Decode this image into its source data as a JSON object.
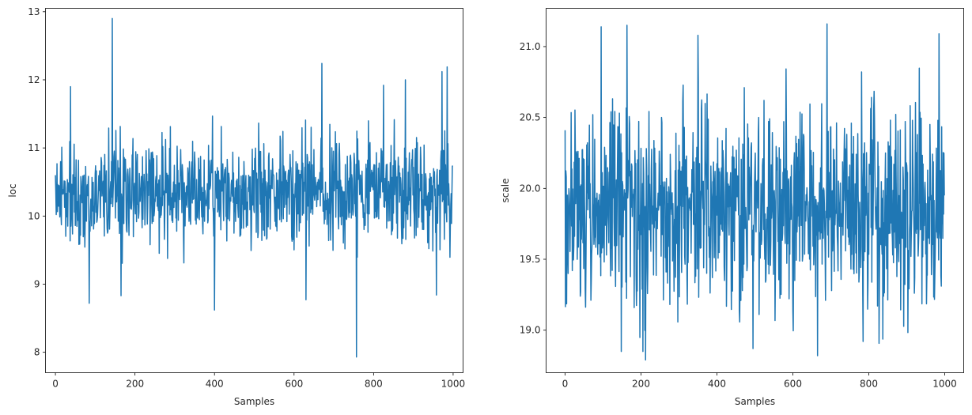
{
  "chart_data": [
    {
      "type": "line",
      "xlabel": "Samples",
      "ylabel": "loc",
      "xlim": [
        -25,
        1025
      ],
      "ylim": [
        7.7,
        13.05
      ],
      "xticks": [
        0,
        200,
        400,
        600,
        800,
        1000
      ],
      "yticks": [
        8,
        9,
        10,
        11,
        12,
        13
      ],
      "color": "#1f77b4",
      "n_samples": 1000,
      "noise": {
        "center": 10.35,
        "spread": 0.38,
        "low": 8.6,
        "high": 12.3,
        "seed": 11
      },
      "series": [
        {
          "values_highlights": [
            {
              "x": 0,
              "y": 10.6
            },
            {
              "x": 38,
              "y": 11.9
            },
            {
              "x": 85,
              "y": 8.72
            },
            {
              "x": 143,
              "y": 12.9
            },
            {
              "x": 165,
              "y": 8.83
            },
            {
              "x": 400,
              "y": 8.62
            },
            {
              "x": 630,
              "y": 8.77
            },
            {
              "x": 670,
              "y": 12.24
            },
            {
              "x": 757,
              "y": 7.93
            },
            {
              "x": 825,
              "y": 11.92
            },
            {
              "x": 880,
              "y": 12.0
            },
            {
              "x": 958,
              "y": 8.84
            },
            {
              "x": 972,
              "y": 12.12
            },
            {
              "x": 985,
              "y": 12.19
            },
            {
              "x": 999,
              "y": 10.74
            }
          ]
        }
      ]
    },
    {
      "type": "line",
      "xlabel": "Samples",
      "ylabel": "scale",
      "xlim": [
        -50,
        1050
      ],
      "ylim": [
        18.7,
        21.27
      ],
      "xticks": [
        0,
        200,
        400,
        600,
        800,
        1000
      ],
      "yticks": [
        19.0,
        19.5,
        20.0,
        20.5,
        21.0
      ],
      "yticklabels": [
        "19.0",
        "19.5",
        "20.0",
        "20.5",
        "21.0"
      ],
      "color": "#1f77b4",
      "n_samples": 1000,
      "noise": {
        "center": 19.85,
        "spread": 0.35,
        "low": 18.85,
        "high": 21.1,
        "seed": 29
      },
      "series": [
        {
          "values_highlights": [
            {
              "x": 0,
              "y": 20.41
            },
            {
              "x": 95,
              "y": 21.14
            },
            {
              "x": 163,
              "y": 21.15
            },
            {
              "x": 205,
              "y": 18.85
            },
            {
              "x": 212,
              "y": 18.79
            },
            {
              "x": 350,
              "y": 21.08
            },
            {
              "x": 495,
              "y": 18.87
            },
            {
              "x": 665,
              "y": 18.82
            },
            {
              "x": 690,
              "y": 21.16
            },
            {
              "x": 785,
              "y": 18.92
            },
            {
              "x": 985,
              "y": 21.09
            },
            {
              "x": 999,
              "y": 19.95
            }
          ]
        }
      ]
    }
  ]
}
